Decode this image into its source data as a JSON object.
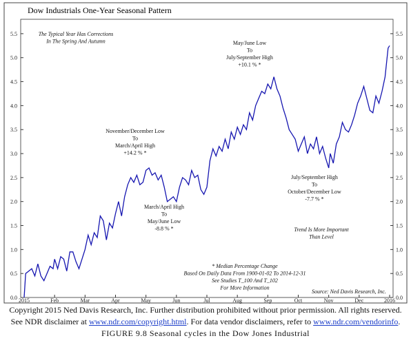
{
  "chart_data": {
    "type": "line",
    "title": "Dow Industrials One-Year Seasonal Pattern",
    "color": "#1515b0",
    "xlim": [
      0,
      12
    ],
    "xticks": [
      {
        "value": 0,
        "label": "2015"
      },
      {
        "value": 1,
        "label": "Feb"
      },
      {
        "value": 2,
        "label": "Mar"
      },
      {
        "value": 3,
        "label": "Apr"
      },
      {
        "value": 4,
        "label": "May"
      },
      {
        "value": 5,
        "label": "Jun"
      },
      {
        "value": 6,
        "label": "Jul"
      },
      {
        "value": 7,
        "label": "Aug"
      },
      {
        "value": 8,
        "label": "Sep"
      },
      {
        "value": 9,
        "label": "Oct"
      },
      {
        "value": 10,
        "label": "Nov"
      },
      {
        "value": 11,
        "label": "Dec"
      },
      {
        "value": 12,
        "label": "2016"
      }
    ],
    "ylim": [
      0,
      5.8
    ],
    "yticks": [
      {
        "value": 0,
        "label": "0.0"
      },
      0.5,
      {
        "value": 1,
        "label": "1.0"
      },
      1.5,
      {
        "value": 2,
        "label": "2.0"
      },
      2.5,
      {
        "value": 3,
        "label": "3.0"
      },
      3.5,
      {
        "value": 4,
        "label": "4.0"
      },
      4.5,
      {
        "value": 5,
        "label": "5.0"
      },
      5.5
    ],
    "x": [
      0,
      0.05,
      0.15,
      0.25,
      0.35,
      0.45,
      0.55,
      0.65,
      0.75,
      0.85,
      0.95,
      1.0,
      1.1,
      1.2,
      1.3,
      1.4,
      1.5,
      1.6,
      1.7,
      1.8,
      1.9,
      2.0,
      2.1,
      2.2,
      2.3,
      2.4,
      2.5,
      2.6,
      2.7,
      2.8,
      2.9,
      3.0,
      3.1,
      3.2,
      3.3,
      3.4,
      3.5,
      3.6,
      3.7,
      3.8,
      3.9,
      4.0,
      4.1,
      4.2,
      4.3,
      4.4,
      4.5,
      4.6,
      4.7,
      4.8,
      4.9,
      5.0,
      5.1,
      5.2,
      5.3,
      5.4,
      5.5,
      5.6,
      5.7,
      5.8,
      5.9,
      6.0,
      6.1,
      6.2,
      6.3,
      6.4,
      6.5,
      6.6,
      6.7,
      6.8,
      6.9,
      7.0,
      7.1,
      7.2,
      7.3,
      7.4,
      7.5,
      7.6,
      7.7,
      7.8,
      7.9,
      8.0,
      8.1,
      8.2,
      8.3,
      8.4,
      8.5,
      8.6,
      8.7,
      8.8,
      8.9,
      9.0,
      9.1,
      9.2,
      9.3,
      9.4,
      9.5,
      9.6,
      9.7,
      9.8,
      9.9,
      10.0,
      10.05,
      10.15,
      10.25,
      10.35,
      10.45,
      10.55,
      10.65,
      10.75,
      10.85,
      10.95,
      11.05,
      11.15,
      11.25,
      11.35,
      11.45,
      11.55,
      11.65,
      11.75,
      11.85,
      11.95,
      12.0
    ],
    "values": [
      0.0,
      0.5,
      0.55,
      0.6,
      0.45,
      0.7,
      0.45,
      0.35,
      0.5,
      0.65,
      0.6,
      0.8,
      0.6,
      0.85,
      0.8,
      0.55,
      0.95,
      0.95,
      0.75,
      0.6,
      0.8,
      1.0,
      1.3,
      1.1,
      1.35,
      1.25,
      1.7,
      1.6,
      1.2,
      1.55,
      1.45,
      1.75,
      2.0,
      1.7,
      2.1,
      2.35,
      2.5,
      2.4,
      2.55,
      2.35,
      2.4,
      2.65,
      2.7,
      2.55,
      2.6,
      2.45,
      2.55,
      2.3,
      2.0,
      2.05,
      2.1,
      2.0,
      2.3,
      2.5,
      2.45,
      2.35,
      2.65,
      2.5,
      2.55,
      2.25,
      2.15,
      2.3,
      2.85,
      3.1,
      2.95,
      3.15,
      3.05,
      3.3,
      3.1,
      3.45,
      3.3,
      3.55,
      3.4,
      3.6,
      3.5,
      3.85,
      3.7,
      4.0,
      4.15,
      4.3,
      4.25,
      4.45,
      4.35,
      4.6,
      4.35,
      4.2,
      3.95,
      3.75,
      3.5,
      3.4,
      3.3,
      3.05,
      3.2,
      3.35,
      3.0,
      3.2,
      3.1,
      3.35,
      3.0,
      3.15,
      2.9,
      2.7,
      3.0,
      2.8,
      3.2,
      3.35,
      3.65,
      3.5,
      3.45,
      3.6,
      3.8,
      4.05,
      4.2,
      4.4,
      4.15,
      3.9,
      3.85,
      4.2,
      4.05,
      4.3,
      4.6,
      5.2,
      5.25
    ],
    "annotations": {
      "typical": [
        "The Typical Year Has Corrections",
        "In The Spring And Autumn"
      ],
      "novdec": [
        "November/December Low",
        "To",
        "March/April High",
        "+14.2 % *"
      ],
      "marapr": [
        "March/April High",
        "To",
        "May/June Low",
        "-8.8 % *"
      ],
      "mayjun": [
        "May/June Low",
        "To",
        "July/September High",
        "+10.1 % *"
      ],
      "julsep": [
        "July/September High",
        "To",
        "October/December Low",
        "-7.7 % *"
      ],
      "trend": [
        "Trend Is More Important",
        "Than Level"
      ],
      "median": [
        "* Median Percentage Change",
        "Based On Daily Data From 1900-01-02 To 2014-12-31",
        "See Studies  T_100  And  T_102",
        "For More Information"
      ],
      "source": "Source:     Ned Davis Research, Inc."
    }
  },
  "footer": {
    "line1": "Copyright 2015 Ned Davis Research, Inc. Further distribution prohibited without prior permission. All rights reserved.",
    "line2a": "See NDR disclaimer at ",
    "link1": "www.ndr.com/copyright.html",
    "line2b": ". For data vendor disclaimers, refer to ",
    "link2": "www.ndr.com/vendorinfo",
    "line2c": ".",
    "caption": "FIGURE 9.8 Seasonal cycles in the Dow Jones Industrial"
  }
}
